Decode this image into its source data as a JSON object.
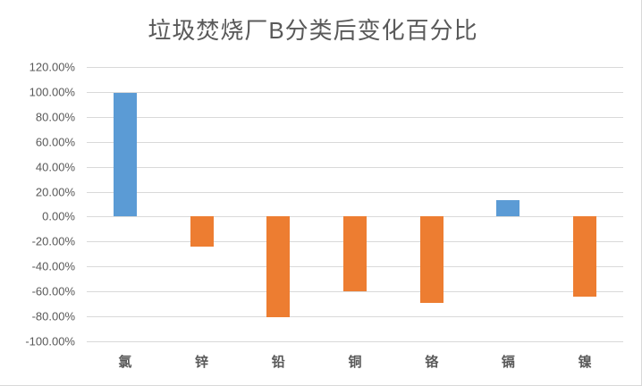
{
  "chart_data": {
    "type": "bar",
    "title": "垃圾焚烧厂B分类后变化百分比",
    "categories": [
      "氯",
      "锌",
      "铅",
      "铜",
      "铬",
      "镉",
      "镍"
    ],
    "values": [
      99.5,
      -24,
      -81,
      -60,
      -69,
      13.5,
      -64
    ],
    "bar_colors": [
      "#5B9BD5",
      "#ED7D31",
      "#ED7D31",
      "#ED7D31",
      "#ED7D31",
      "#5B9BD5",
      "#ED7D31"
    ],
    "positive_color": "#5B9BD5",
    "negative_color": "#ED7D31",
    "xlabel": "",
    "ylabel": "",
    "ylim": [
      -100,
      120
    ],
    "ytick_step": 20,
    "ytick_labels": [
      "120.00%",
      "100.00%",
      "80.00%",
      "60.00%",
      "40.00%",
      "20.00%",
      "0.00%",
      "-20.00%",
      "-40.00%",
      "-60.00%",
      "-80.00%",
      "-100.00%"
    ],
    "grid": true,
    "legend": "none",
    "gridline_color": "#D9D9D9",
    "title_color": "#595959",
    "tick_label_color": "#595959",
    "background_color": "#FFFFFF"
  }
}
